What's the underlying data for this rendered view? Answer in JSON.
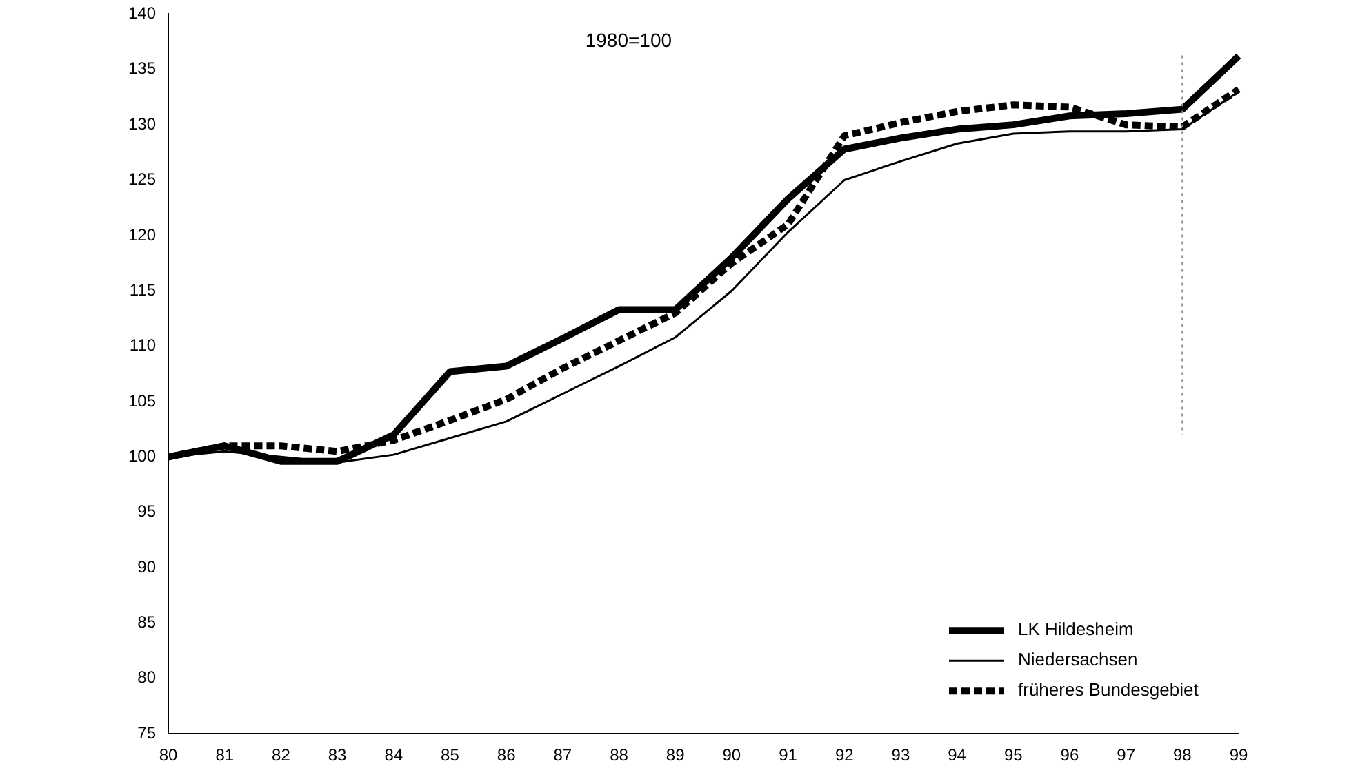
{
  "chart_data": {
    "type": "line",
    "annotations": [
      "1980=100"
    ],
    "categories": [
      "80",
      "81",
      "82",
      "83",
      "84",
      "85",
      "86",
      "87",
      "88",
      "89",
      "90",
      "91",
      "92",
      "93",
      "94",
      "95",
      "96",
      "97",
      "98",
      "99"
    ],
    "series": [
      {
        "name": "LK Hildesheim",
        "color": "#000000",
        "line_style": "solid",
        "values": [
          100,
          101,
          99.6,
          99.6,
          102,
          107.7,
          108.2,
          110.7,
          113.3,
          113.3,
          118,
          123.3,
          127.8,
          128.8,
          129.6,
          130,
          130.8,
          131,
          131.4,
          136.2
        ]
      },
      {
        "name": "Niedersachsen",
        "color": "#000000",
        "line_style": "solid",
        "values": [
          100,
          100.5,
          100,
          99.5,
          100.2,
          101.7,
          103.2,
          105.7,
          108.2,
          110.8,
          115,
          120.3,
          125,
          126.7,
          128.3,
          129.2,
          129.4,
          129.4,
          129.6,
          133
        ]
      },
      {
        "name": "früheres Bundesgebiet",
        "color": "#000000",
        "line_style": "dashed",
        "values": [
          100,
          101,
          101,
          100.5,
          101.5,
          103.3,
          105.2,
          108,
          110.5,
          113,
          117.5,
          121,
          129,
          130.2,
          131.2,
          131.8,
          131.6,
          130,
          129.8,
          133.2
        ]
      }
    ],
    "ylim": [
      75,
      140
    ],
    "yticks": [
      75,
      80,
      85,
      90,
      95,
      100,
      105,
      110,
      115,
      120,
      125,
      130,
      135,
      140
    ],
    "ref_lines": [
      {
        "axis": "x",
        "value": "98",
        "line_style": "dotted",
        "color": "#888888"
      }
    ],
    "grid": false,
    "legend": "bottom right",
    "marker": "none"
  }
}
